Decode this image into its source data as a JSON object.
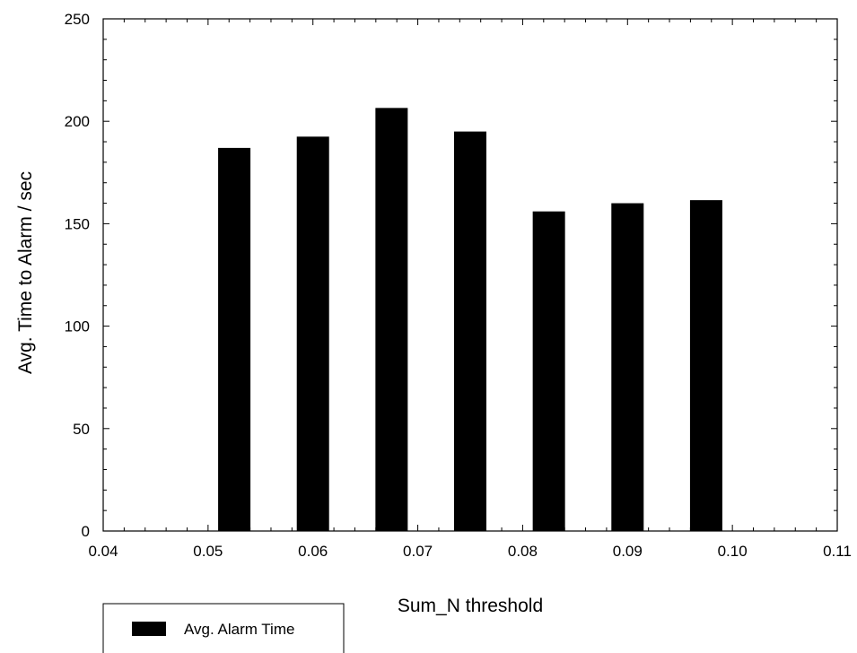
{
  "chart_data": {
    "type": "bar",
    "title": "",
    "xlabel": "Sum_N threshold",
    "ylabel": "Avg. Time to Alarm / sec",
    "xlim": [
      0.04,
      0.11
    ],
    "ylim": [
      0,
      250
    ],
    "x_ticks": [
      "0.04",
      "0.05",
      "0.06",
      "0.07",
      "0.08",
      "0.09",
      "0.10",
      "0.11"
    ],
    "y_ticks": [
      "0",
      "50",
      "100",
      "150",
      "200",
      "250"
    ],
    "grid": false,
    "legend_position": "bottom-left",
    "series": [
      {
        "name": "Avg. Alarm Time",
        "color": "#000000",
        "x": [
          0.0525,
          0.06,
          0.0675,
          0.075,
          0.0825,
          0.09,
          0.0975
        ],
        "values": [
          187,
          192.5,
          206.5,
          195,
          156,
          160,
          161.5
        ]
      }
    ]
  }
}
